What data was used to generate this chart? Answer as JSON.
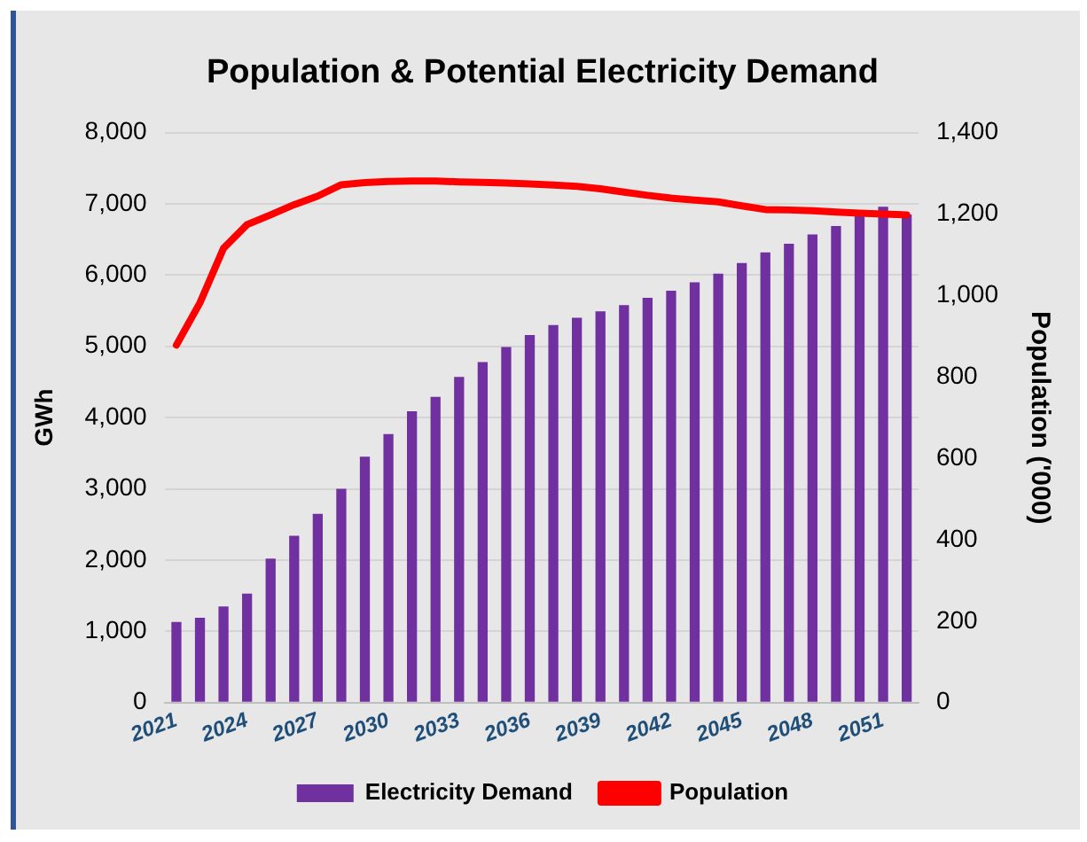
{
  "chart_data": {
    "type": "bar",
    "title": "Population & Potential Electricity Demand",
    "ylabel": "GWh",
    "y2label": "Population ('000)",
    "categories": [
      "2021",
      null,
      null,
      "2024",
      null,
      null,
      "2027",
      null,
      null,
      "2030",
      null,
      null,
      "2033",
      null,
      null,
      "2036",
      null,
      null,
      "2039",
      null,
      null,
      "2042",
      null,
      null,
      "2045",
      null,
      null,
      "2048",
      null,
      null,
      "2051",
      null
    ],
    "series": [
      {
        "name": "Electricity Demand",
        "color": "#7030a0",
        "values": [
          1130,
          1190,
          1350,
          1530,
          2020,
          2340,
          2650,
          3000,
          3450,
          3770,
          4090,
          4290,
          4570,
          4780,
          4990,
          5160,
          5300,
          5400,
          5490,
          5580,
          5680,
          5780,
          5900,
          6020,
          6170,
          6320,
          6440,
          6570,
          6690,
          6850,
          6960,
          6850
        ]
      },
      {
        "name": "Population",
        "type": "line",
        "axis": "y2",
        "color": "#ff0000",
        "values": [
          878,
          982,
          1116,
          1174,
          1198,
          1223,
          1244,
          1272,
          1277,
          1280,
          1281,
          1281,
          1279,
          1278,
          1276,
          1274,
          1271,
          1268,
          1262,
          1254,
          1246,
          1239,
          1234,
          1230,
          1220,
          1211,
          1210,
          1208,
          1205,
          1202,
          1200,
          1198
        ]
      }
    ],
    "ylim": [
      0,
      8000
    ],
    "yticks": [
      {
        "value": 0,
        "label": "0"
      },
      {
        "value": 1000,
        "label": "1,000"
      },
      {
        "value": 2000,
        "label": "2,000"
      },
      {
        "value": 3000,
        "label": "3,000"
      },
      {
        "value": 4000,
        "label": "4,000"
      },
      {
        "value": 5000,
        "label": "5,000"
      },
      {
        "value": 6000,
        "label": "6,000"
      },
      {
        "value": 7000,
        "label": "7,000"
      },
      {
        "value": 8000,
        "label": "8,000"
      }
    ],
    "y2lim": [
      0,
      1400
    ],
    "y2ticks": [
      0,
      200,
      400,
      600,
      800,
      {
        "value": 1000,
        "label": "1,000"
      },
      {
        "value": 1200,
        "label": "1,200"
      },
      {
        "value": 1400,
        "label": "1,400"
      }
    ],
    "grid": "y",
    "legend": "bottom",
    "marker": "none"
  }
}
